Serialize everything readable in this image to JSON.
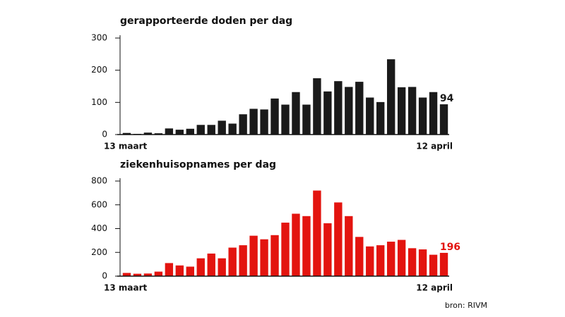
{
  "chart_data": [
    {
      "type": "bar",
      "title": "gerapporteerde doden per dag",
      "categories": [
        "13 maart",
        null,
        null,
        null,
        null,
        null,
        null,
        null,
        null,
        null,
        null,
        null,
        null,
        null,
        null,
        null,
        null,
        null,
        null,
        null,
        null,
        null,
        null,
        null,
        null,
        null,
        null,
        null,
        null,
        null,
        "12 april"
      ],
      "values": [
        5,
        2,
        6,
        4,
        19,
        15,
        18,
        30,
        30,
        43,
        34,
        63,
        80,
        78,
        112,
        93,
        132,
        93,
        175,
        134,
        166,
        148,
        164,
        115,
        101,
        234,
        147,
        148,
        115,
        132,
        94
      ],
      "color": "#1a1a1a",
      "ylim": [
        0,
        300
      ],
      "yticks": [
        0,
        100,
        200,
        300
      ]
    },
    {
      "type": "bar",
      "title": "ziekenhuisopnames per dag",
      "categories": [
        "13 maart",
        null,
        null,
        null,
        null,
        null,
        null,
        null,
        null,
        null,
        null,
        null,
        null,
        null,
        null,
        null,
        null,
        null,
        null,
        null,
        null,
        null,
        null,
        null,
        null,
        null,
        null,
        null,
        null,
        null,
        "12 april"
      ],
      "values": [
        27,
        20,
        22,
        38,
        110,
        90,
        80,
        150,
        190,
        150,
        240,
        260,
        340,
        310,
        345,
        450,
        525,
        505,
        720,
        445,
        620,
        505,
        330,
        250,
        260,
        290,
        305,
        235,
        225,
        180,
        196
      ],
      "color": "#e3140f",
      "ylim": [
        0,
        800
      ],
      "yticks": [
        0,
        200,
        400,
        600,
        800
      ]
    }
  ],
  "source": "bron: RIVM"
}
